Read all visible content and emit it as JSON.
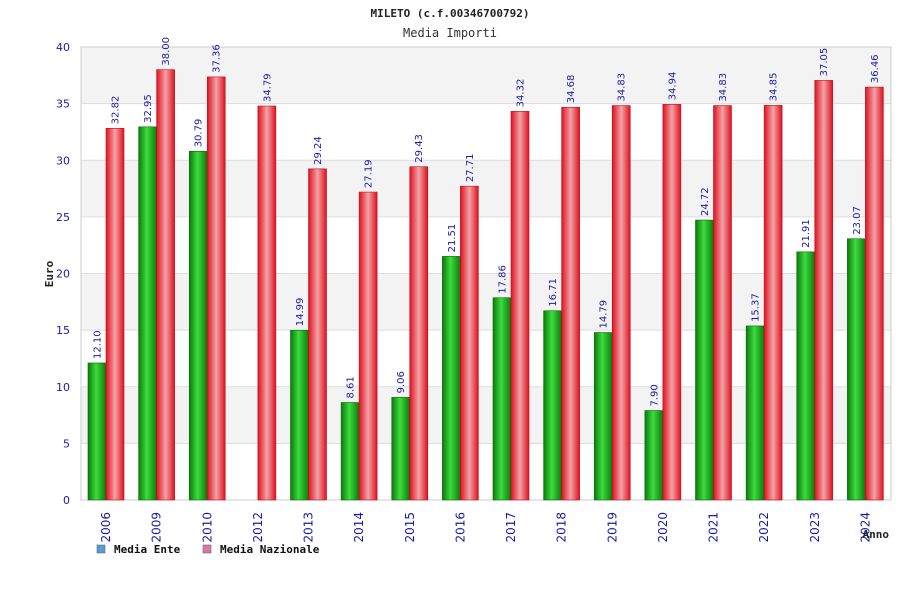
{
  "chart_data": {
    "type": "bar",
    "title": "MILETO (c.f.00346700792)",
    "subtitle": "Media Importi",
    "xlabel": "Anno",
    "ylabel": "Euro",
    "ylim": [
      0,
      40
    ],
    "yticks": [
      "0",
      "5",
      "10",
      "15",
      "20",
      "25",
      "30",
      "35",
      "40"
    ],
    "grid": true,
    "legend_position": "bottom-left",
    "categories": [
      "2006",
      "2009",
      "2010",
      "2012",
      "2013",
      "2014",
      "2015",
      "2016",
      "2017",
      "2018",
      "2019",
      "2020",
      "2021",
      "2022",
      "2023",
      "2024"
    ],
    "series": [
      {
        "name": "Media Ente",
        "color": "#1fa01f",
        "legend_color": "#5b9bd5",
        "values": [
          12.1,
          32.95,
          30.79,
          null,
          14.99,
          8.61,
          9.06,
          21.51,
          17.86,
          16.71,
          14.79,
          7.9,
          24.72,
          15.37,
          21.91,
          23.07
        ],
        "labels": [
          "12.10",
          "32.95",
          "30.79",
          "",
          "14.99",
          "8.61",
          "9.06",
          "21.51",
          "17.86",
          "16.71",
          "14.79",
          "7.90",
          "24.72",
          "15.37",
          "21.91",
          "23.07"
        ]
      },
      {
        "name": "Media Nazionale",
        "color": "#e0202a",
        "legend_color": "#d77aa8",
        "values": [
          32.82,
          38.0,
          37.36,
          34.79,
          29.24,
          27.19,
          29.43,
          27.71,
          34.32,
          34.68,
          34.83,
          34.94,
          34.83,
          34.85,
          37.05,
          36.46
        ],
        "labels": [
          "32.82",
          "38.00",
          "37.36",
          "34.79",
          "29.24",
          "27.19",
          "29.43",
          "27.71",
          "34.32",
          "34.68",
          "34.83",
          "34.94",
          "34.83",
          "34.85",
          "37.05",
          "36.46"
        ]
      }
    ]
  }
}
